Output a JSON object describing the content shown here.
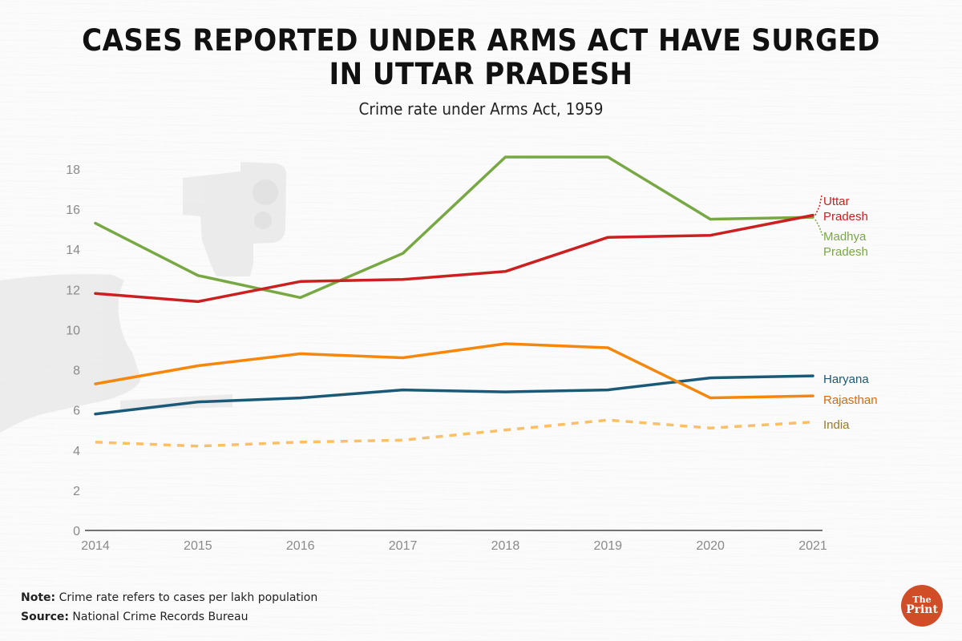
{
  "header": {
    "title_line1": "CASES REPORTED UNDER ARMS ACT HAVE SURGED",
    "title_line2": "IN UTTAR PRADESH",
    "subtitle": "Crime rate under Arms Act, 1959"
  },
  "footer": {
    "note_label": "Note:",
    "note_text": " Crime rate refers to cases per lakh population",
    "source_label": "Source:",
    "source_text": " National Crime Records Bureau"
  },
  "logo": {
    "line1": "The",
    "line2": "Print",
    "color": "#d04d27"
  },
  "decor": {
    "background_image": "hand-holding-pistol-silhouette"
  },
  "chart_data": {
    "type": "line",
    "title": "Cases reported under Arms Act have surged in Uttar Pradesh",
    "subtitle": "Crime rate under Arms Act, 1959",
    "xlabel": "",
    "ylabel": "",
    "x": [
      "2014",
      "2015",
      "2016",
      "2017",
      "2018",
      "2019",
      "2020",
      "2021"
    ],
    "ylim": [
      0,
      18
    ],
    "yticks": [
      0,
      2,
      4,
      6,
      8,
      10,
      12,
      14,
      16,
      18
    ],
    "grid": false,
    "legend": "direct labels at right end of lines",
    "series": [
      {
        "name": "Madhya Pradesh",
        "label_lines": [
          "Madhya",
          "Pradesh"
        ],
        "color": "#78a843",
        "dashed": false,
        "values": [
          15.3,
          12.7,
          11.6,
          13.8,
          18.6,
          18.6,
          15.5,
          15.6
        ]
      },
      {
        "name": "Uttar Pradesh",
        "label_lines": [
          "Uttar",
          "Pradesh"
        ],
        "color": "#cc1f1f",
        "dashed": false,
        "values": [
          11.8,
          11.4,
          12.4,
          12.5,
          12.9,
          14.6,
          14.7,
          15.7
        ]
      },
      {
        "name": "Rajasthan",
        "label_lines": [
          "Rajasthan"
        ],
        "color": "#f5870c",
        "label_color": "#d9690d",
        "dashed": false,
        "values": [
          7.3,
          8.2,
          8.8,
          8.6,
          9.3,
          9.1,
          6.6,
          6.7
        ]
      },
      {
        "name": "Haryana",
        "label_lines": [
          "Haryana"
        ],
        "color": "#1a5a78",
        "dashed": false,
        "values": [
          5.8,
          6.4,
          6.6,
          7.0,
          6.9,
          7.0,
          7.6,
          7.7
        ]
      },
      {
        "name": "India",
        "label_lines": [
          "India"
        ],
        "color": "#fbbf66",
        "label_color": "#9a7a2a",
        "dashed": true,
        "values": [
          4.4,
          4.2,
          4.4,
          4.5,
          5.0,
          5.5,
          5.1,
          5.4
        ]
      }
    ],
    "notes": [
      "Crime rate refers to cases per lakh population"
    ],
    "source": "National Crime Records Bureau"
  }
}
